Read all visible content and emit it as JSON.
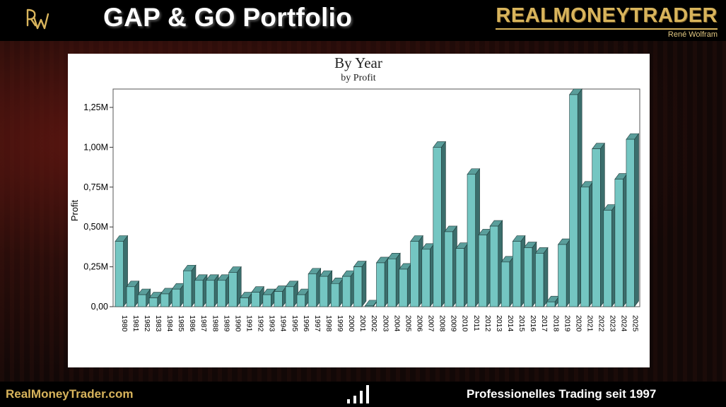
{
  "header": {
    "logo_text": "RW",
    "title": "GAP & GO Portfolio",
    "brand_name": "REALMONEYTRADER",
    "brand_sub": "René Wolfram"
  },
  "footer": {
    "website": "RealMoneyTrader.com",
    "tagline": "Professionelles Trading seit 1997",
    "icon": "bar-chart-icon"
  },
  "colors": {
    "bar_front": "#74c6c2",
    "bar_top": "#5a9e9b",
    "bar_side": "#3b6e6c",
    "brand_gold": "#d8b45c"
  },
  "chart_data": {
    "type": "bar",
    "title": "By Year",
    "subtitle": "by Profit",
    "xlabel": "",
    "ylabel": "Profit",
    "ylim": [
      0,
      1400000
    ],
    "yticks": [
      0,
      250000,
      500000,
      750000,
      1000000,
      1250000
    ],
    "ytick_labels": [
      "0,00",
      "0,25M",
      "0,50M",
      "0,75M",
      "1,00M",
      "1,25M"
    ],
    "grid": false,
    "categories": [
      "1980",
      "1981",
      "1982",
      "1983",
      "1984",
      "1985",
      "1986",
      "1987",
      "1988",
      "1989",
      "1990",
      "1991",
      "1992",
      "1993",
      "1994",
      "1995",
      "1996",
      "1997",
      "1998",
      "1999",
      "2000",
      "2001",
      "2002",
      "2003",
      "2004",
      "2005",
      "2006",
      "2007",
      "2008",
      "2009",
      "2010",
      "2011",
      "2012",
      "2013",
      "2014",
      "2015",
      "2016",
      "2017",
      "2018",
      "2019",
      "2020",
      "2021",
      "2022",
      "2023",
      "2024",
      "2025"
    ],
    "values": [
      410000,
      125000,
      75000,
      55000,
      80000,
      110000,
      225000,
      165000,
      165000,
      165000,
      215000,
      55000,
      90000,
      75000,
      95000,
      125000,
      75000,
      205000,
      190000,
      145000,
      190000,
      250000,
      5000,
      275000,
      300000,
      235000,
      410000,
      360000,
      1000000,
      470000,
      365000,
      830000,
      450000,
      505000,
      280000,
      410000,
      370000,
      335000,
      30000,
      390000,
      1330000,
      750000,
      990000,
      605000,
      800000,
      1050000
    ]
  }
}
